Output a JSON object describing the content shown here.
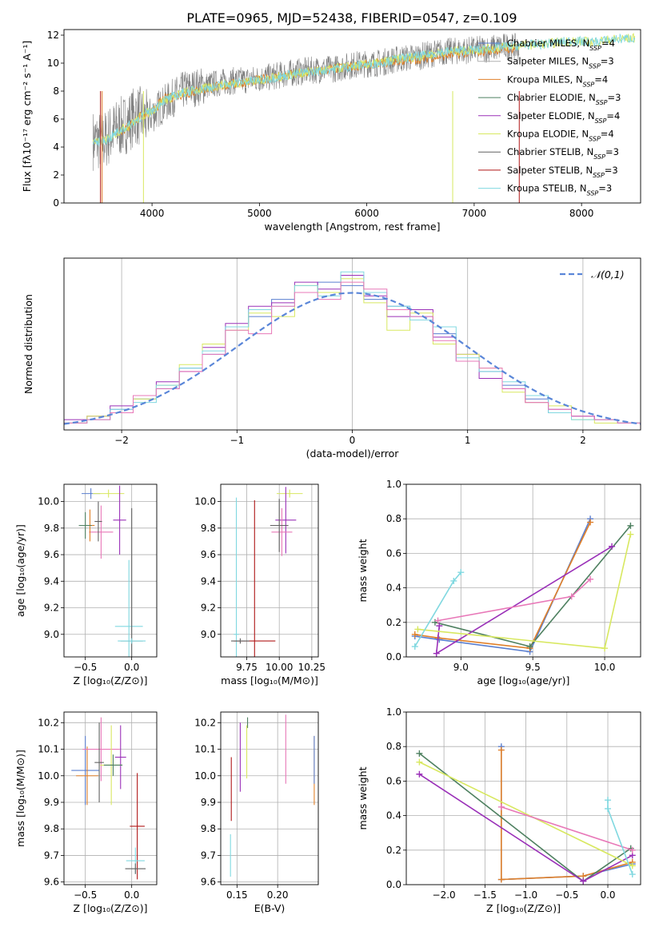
{
  "figure": {
    "title": "PLATE=0965, MJD=52438, FIBERID=0547, z=0.109"
  },
  "colors": {
    "Chabrier MILES": "#5a7fd0",
    "Salpeter MILES": "#b0b0b0",
    "Kroupa MILES": "#e0802a",
    "Chabrier ELODIE": "#4e8060",
    "Salpeter ELODIE": "#9a30b8",
    "Kroupa ELODIE": "#d8e860",
    "Chabrier STELIB": "#606060",
    "Salpeter STELIB": "#b01818",
    "Kroupa STELIB": "#80d8e0",
    "pink": "#e878b8",
    "data": "#808080",
    "normal": "#5a86d8"
  },
  "chart_data": [
    {
      "id": "spectrum",
      "type": "line",
      "xlabel": "wavelength [Angstrom, rest frame]",
      "ylabel": "Flux [fλ10⁻¹⁷ erg cm⁻² s⁻¹ A⁻¹]",
      "xlim": [
        3180,
        8550
      ],
      "ylim": [
        0,
        12.4
      ],
      "xticks": [
        4000,
        5000,
        6000,
        7000,
        8000
      ],
      "yticks": [
        0,
        2,
        4,
        6,
        8,
        10,
        12
      ],
      "grid": false,
      "legend_position": "right",
      "legend": [
        "Chabrier MILES, N_SSP=4",
        "Salpeter MILES, N_SSP=3",
        "Kroupa MILES, N_SSP=4",
        "Chabrier ELODIE, N_SSP=3",
        "Salpeter ELODIE, N_SSP=4",
        "Kroupa ELODIE, N_SSP=4",
        "Chabrier STELIB, N_SSP=3",
        "Salpeter STELIB, N_SSP=3",
        "Kroupa STELIB, N_SSP=3"
      ],
      "series": [
        {
          "name": "data",
          "x": [
            3450,
            3550,
            3650,
            3750,
            3850,
            3950,
            4100,
            4300,
            4500,
            4700,
            4900,
            5100,
            5300,
            5500,
            5700,
            5900,
            6100,
            6300,
            6500,
            6700,
            6900,
            7100,
            7300,
            7420
          ],
          "y": [
            4.5,
            4.4,
            5.2,
            5.6,
            6.3,
            6.0,
            7.0,
            8.1,
            8.4,
            8.7,
            8.8,
            9.0,
            9.3,
            9.5,
            9.6,
            9.9,
            10.0,
            10.3,
            10.5,
            10.8,
            10.9,
            11.0,
            11.2,
            11.1
          ]
        },
        {
          "name": "Kroupa MILES",
          "x": [
            3700,
            3800,
            3900,
            4000,
            4100,
            4300,
            4600,
            5000,
            5500,
            6000,
            6500,
            7000,
            7400
          ],
          "y": [
            5.1,
            5.6,
            6.2,
            6.5,
            7.4,
            7.8,
            8.3,
            8.8,
            9.4,
            9.9,
            10.3,
            10.8,
            11.1
          ]
        },
        {
          "name": "Kroupa STELIB",
          "x": [
            3450,
            3500,
            3600,
            3700,
            3800,
            3900,
            4000,
            4100,
            4200,
            4300,
            4500,
            4700,
            4900,
            5100,
            5300,
            5500,
            5700,
            5900,
            6100,
            6300,
            6500,
            6700,
            6900,
            7100,
            7300,
            7500,
            7700,
            7900,
            8100,
            8300,
            8500
          ],
          "y": [
            4.5,
            4.3,
            4.6,
            5.2,
            5.6,
            6.2,
            6.6,
            7.3,
            7.6,
            7.9,
            8.2,
            8.5,
            8.7,
            8.9,
            9.2,
            9.4,
            9.6,
            9.8,
            10.0,
            10.3,
            10.5,
            10.8,
            10.9,
            11.0,
            11.2,
            11.3,
            11.4,
            11.6,
            11.5,
            11.7,
            11.8
          ]
        }
      ]
    },
    {
      "id": "residuals",
      "type": "line",
      "xlabel": "(data-model)/error",
      "ylabel": "Normed distribution",
      "xlim": [
        -2.5,
        2.5
      ],
      "ylim": [
        0,
        0.5
      ],
      "xticks": [
        -2,
        -1,
        0,
        1,
        2
      ],
      "ytick_labels": [
        "0.0",
        "0.1",
        "0.2",
        "0.3",
        "0.4",
        "0.5"
      ],
      "grid": true,
      "legend": [
        "𝒩(0,1)"
      ],
      "legend_position": "top-right",
      "normal": {
        "mean": 0,
        "sigma": 1
      },
      "bin_edges": [
        -2.5,
        -2.3,
        -2.1,
        -1.9,
        -1.7,
        -1.5,
        -1.3,
        -1.1,
        -0.9,
        -0.7,
        -0.5,
        -0.3,
        -0.1,
        0.1,
        0.3,
        0.5,
        0.7,
        0.9,
        1.1,
        1.3,
        1.5,
        1.7,
        1.9,
        2.1,
        2.3,
        2.5
      ],
      "histograms": [
        {
          "name": "Chabrier MILES",
          "values": [
            0.02,
            0.03,
            0.06,
            0.09,
            0.12,
            0.18,
            0.22,
            0.3,
            0.33,
            0.38,
            0.4,
            0.43,
            0.42,
            0.38,
            0.36,
            0.33,
            0.28,
            0.2,
            0.17,
            0.13,
            0.09,
            0.05,
            0.04,
            0.03,
            0.02
          ]
        },
        {
          "name": "Salpeter ELODIE",
          "values": [
            0.03,
            0.04,
            0.07,
            0.1,
            0.14,
            0.17,
            0.24,
            0.31,
            0.36,
            0.37,
            0.43,
            0.41,
            0.45,
            0.39,
            0.33,
            0.35,
            0.27,
            0.22,
            0.15,
            0.12,
            0.08,
            0.06,
            0.04,
            0.03,
            0.02
          ]
        },
        {
          "name": "Kroupa ELODIE",
          "values": [
            0.02,
            0.04,
            0.05,
            0.09,
            0.13,
            0.19,
            0.25,
            0.29,
            0.34,
            0.33,
            0.42,
            0.4,
            0.44,
            0.37,
            0.29,
            0.34,
            0.25,
            0.22,
            0.18,
            0.11,
            0.08,
            0.07,
            0.03,
            0.02,
            0.02
          ]
        },
        {
          "name": "Kroupa STELIB",
          "values": [
            0.02,
            0.03,
            0.06,
            0.08,
            0.13,
            0.18,
            0.23,
            0.3,
            0.35,
            0.36,
            0.42,
            0.39,
            0.46,
            0.4,
            0.36,
            0.32,
            0.3,
            0.21,
            0.17,
            0.14,
            0.1,
            0.05,
            0.03,
            0.03,
            0.02
          ]
        },
        {
          "name": "pink",
          "values": [
            0.02,
            0.03,
            0.05,
            0.1,
            0.12,
            0.17,
            0.22,
            0.29,
            0.28,
            0.36,
            0.4,
            0.38,
            0.43,
            0.41,
            0.35,
            0.33,
            0.26,
            0.2,
            0.18,
            0.12,
            0.08,
            0.06,
            0.04,
            0.03,
            0.02
          ]
        }
      ]
    },
    {
      "id": "age_vs_Z",
      "type": "scatter",
      "xlabel": "Z [log₁₀(Z/Z⊙)]",
      "ylabel": "age  [log₁₀(age/yr)]",
      "xlim": [
        -0.73,
        0.27
      ],
      "ylim": [
        8.83,
        10.13
      ],
      "xtick_labels": [
        "−0.5",
        "0.0"
      ],
      "xticks": [
        -0.5,
        0.0
      ],
      "ytick_labels": [
        "9.0",
        "9.2",
        "9.4",
        "9.6",
        "9.8",
        "10.0"
      ],
      "yticks": [
        9.0,
        9.2,
        9.4,
        9.6,
        9.8,
        10.0
      ],
      "grid": true,
      "points": [
        {
          "series": "Chabrier MILES",
          "x": -0.44,
          "y": 10.06,
          "xerr": 0.1,
          "yerr": 0.04
        },
        {
          "series": "Kroupa ELODIE",
          "x": -0.25,
          "y": 10.06,
          "xerr": 0.17,
          "yerr": 0.03
        },
        {
          "series": "Salpeter ELODIE",
          "x": -0.13,
          "y": 9.86,
          "xerr": 0.07,
          "yerr": 0.26
        },
        {
          "series": "pink",
          "x": -0.33,
          "y": 9.77,
          "xerr": 0.13,
          "yerr": 0.2
        },
        {
          "series": "Chabrier STELIB",
          "x": -0.36,
          "y": 9.85,
          "xerr": 0.04,
          "yerr": 0.15
        },
        {
          "series": "Kroupa MILES",
          "x": -0.45,
          "y": 9.82,
          "xerr": 0.05,
          "yerr": 0.12
        },
        {
          "series": "Chabrier ELODIE",
          "x": -0.5,
          "y": 9.82,
          "xerr": 0.07,
          "yerr": 0.1
        },
        {
          "series": "Kroupa STELIB",
          "x": -0.03,
          "y": 9.06,
          "xerr": 0.15,
          "yerr": 0.5
        },
        {
          "series": "Chabrier STELIB",
          "x": 0.0,
          "y": 8.95,
          "xerr": 0.12,
          "yerr": 1.0
        },
        {
          "series": "Kroupa STELIB",
          "x": 0.0,
          "y": 8.95,
          "xerr": 0.15,
          "yerr": 0.02
        }
      ]
    },
    {
      "id": "age_vs_mass",
      "type": "scatter",
      "xlabel": "mass [log₁₀(M/M⊙)]",
      "xlim": [
        9.55,
        10.3
      ],
      "xtick_labels": [
        "9.75",
        "10.00",
        "10.25"
      ],
      "xticks": [
        9.75,
        10.0,
        10.25
      ],
      "ylim": [
        8.83,
        10.13
      ],
      "ytick_labels": [
        "9.0",
        "9.2",
        "9.4",
        "9.6",
        "9.8",
        "10.0"
      ],
      "yticks": [
        9.0,
        9.2,
        9.4,
        9.6,
        9.8,
        10.0
      ],
      "grid": true,
      "points": [
        {
          "series": "Kroupa ELODIE",
          "x": 10.08,
          "y": 10.06,
          "xerr": 0.1,
          "yerr": 0.03
        },
        {
          "series": "Salpeter ELODIE",
          "x": 10.05,
          "y": 9.86,
          "xerr": 0.08,
          "yerr": 0.25
        },
        {
          "series": "pink",
          "x": 10.02,
          "y": 9.77,
          "xerr": 0.08,
          "yerr": 0.18
        },
        {
          "series": "Chabrier STELIB",
          "x": 10.0,
          "y": 9.82,
          "xerr": 0.07,
          "yerr": 0.2
        },
        {
          "series": "Kroupa STELIB",
          "x": 9.67,
          "y": 9.0,
          "xerr": 0.02,
          "yerr": 1.03
        },
        {
          "series": "Salpeter STELIB",
          "x": 9.81,
          "y": 8.95,
          "xerr": 0.16,
          "yerr": 1.06
        },
        {
          "series": "Chabrier STELIB",
          "x": 9.7,
          "y": 8.95,
          "xerr": 0.07,
          "yerr": 0.02
        }
      ]
    },
    {
      "id": "weight_vs_age",
      "type": "line",
      "xlabel": "age  [log₁₀(age/yr)]",
      "ylabel": "mass weight",
      "xlim": [
        8.62,
        10.25
      ],
      "xticks": [
        9.0,
        9.5,
        10.0
      ],
      "xtick_labels": [
        "9.0",
        "9.5",
        "10.0"
      ],
      "ylim": [
        0,
        1.0
      ],
      "yticks": [
        0,
        0.2,
        0.4,
        0.6,
        0.8,
        1.0
      ],
      "ytick_labels": [
        "0.0",
        "0.2",
        "0.4",
        "0.6",
        "0.8",
        "1.0"
      ],
      "grid": true,
      "series": [
        {
          "name": "Chabrier MILES",
          "x": [
            8.68,
            8.85,
            9.48,
            9.9
          ],
          "y": [
            0.12,
            0.1,
            0.03,
            0.8
          ]
        },
        {
          "name": "Kroupa MILES",
          "x": [
            8.68,
            8.84,
            9.48,
            9.9
          ],
          "y": [
            0.13,
            0.11,
            0.05,
            0.78
          ]
        },
        {
          "name": "Chabrier ELODIE",
          "x": [
            8.82,
            9.48,
            10.18
          ],
          "y": [
            0.2,
            0.06,
            0.76
          ]
        },
        {
          "name": "Salpeter ELODIE",
          "x": [
            8.85,
            8.83,
            10.05
          ],
          "y": [
            0.18,
            0.02,
            0.64
          ]
        },
        {
          "name": "Kroupa ELODIE",
          "x": [
            8.7,
            10.0,
            10.18
          ],
          "y": [
            0.16,
            0.05,
            0.71
          ]
        },
        {
          "name": "pink",
          "x": [
            8.84,
            9.77,
            9.9
          ],
          "y": [
            0.21,
            0.35,
            0.45
          ]
        },
        {
          "name": "Kroupa STELIB",
          "x": [
            8.68,
            8.95,
            9.0
          ],
          "y": [
            0.06,
            0.44,
            0.49
          ]
        }
      ]
    },
    {
      "id": "mass_vs_Z",
      "type": "scatter",
      "xlabel": "Z [log₁₀(Z/Z⊙)]",
      "ylabel": "mass [log₁₀(M/M⊙)]",
      "xlim": [
        -0.73,
        0.27
      ],
      "xtick_labels": [
        "−0.5",
        "0.0"
      ],
      "xticks": [
        -0.5,
        0.0
      ],
      "ylim": [
        9.59,
        10.24
      ],
      "ytick_labels": [
        "9.6",
        "9.7",
        "9.8",
        "9.9",
        "10.0",
        "10.1",
        "10.2"
      ],
      "yticks": [
        9.6,
        9.7,
        9.8,
        9.9,
        10.0,
        10.1,
        10.2
      ],
      "grid": true,
      "points": [
        {
          "series": "Chabrier MILES",
          "x": -0.5,
          "y": 10.02,
          "xerr": 0.15,
          "yerr": 0.13
        },
        {
          "series": "Kroupa MILES",
          "x": -0.48,
          "y": 10.0,
          "xerr": 0.12,
          "yerr": 0.11
        },
        {
          "series": "pink",
          "x": -0.33,
          "y": 10.1,
          "xerr": 0.2,
          "yerr": 0.12
        },
        {
          "series": "Chabrier STELIB",
          "x": -0.35,
          "y": 10.05,
          "xerr": 0.05,
          "yerr": 0.15
        },
        {
          "series": "Kroupa ELODIE",
          "x": -0.22,
          "y": 10.04,
          "xerr": 0.12,
          "yerr": 0.15
        },
        {
          "series": "Salpeter ELODIE",
          "x": -0.12,
          "y": 10.07,
          "xerr": 0.06,
          "yerr": 0.12
        },
        {
          "series": "Chabrier ELODIE",
          "x": -0.2,
          "y": 10.04,
          "xerr": 0.1,
          "yerr": 0.04
        },
        {
          "series": "Salpeter STELIB",
          "x": 0.06,
          "y": 9.81,
          "xerr": 0.08,
          "yerr": 0.2
        },
        {
          "series": "Kroupa STELIB",
          "x": 0.04,
          "y": 9.68,
          "xerr": 0.1,
          "yerr": 0.05
        },
        {
          "series": "Chabrier STELIB",
          "x": 0.04,
          "y": 9.65,
          "xerr": 0.11,
          "yerr": 0.02
        }
      ]
    },
    {
      "id": "mass_vs_EBV",
      "type": "scatter",
      "xlabel": "E(B-V)",
      "xlim": [
        0.13,
        0.25
      ],
      "xticks": [
        0.15,
        0.2
      ],
      "xtick_labels": [
        "0.15",
        "0.20"
      ],
      "ylim": [
        9.59,
        10.24
      ],
      "ytick_labels": [
        "9.6",
        "9.7",
        "9.8",
        "9.9",
        "10.0",
        "10.1",
        "10.2"
      ],
      "yticks": [
        9.6,
        9.7,
        9.8,
        9.9,
        10.0,
        10.1,
        10.2
      ],
      "grid": true,
      "points": [
        {
          "series": "Kroupa STELIB",
          "x": 0.142,
          "y": 9.7,
          "yerr": 0.08
        },
        {
          "series": "Salpeter STELIB",
          "x": 0.143,
          "y": 9.95,
          "yerr": 0.12
        },
        {
          "series": "Salpeter ELODIE",
          "x": 0.154,
          "y": 10.07,
          "yerr": 0.13
        },
        {
          "series": "Chabrier ELODIE",
          "x": 0.163,
          "y": 10.2,
          "yerr": 0.02
        },
        {
          "series": "Kroupa ELODIE",
          "x": 0.162,
          "y": 10.09,
          "yerr": 0.1
        },
        {
          "series": "pink",
          "x": 0.21,
          "y": 10.1,
          "yerr": 0.13
        },
        {
          "series": "Kroupa MILES",
          "x": 0.245,
          "y": 10.02,
          "yerr": 0.13
        },
        {
          "series": "Chabrier MILES",
          "x": 0.245,
          "y": 10.06,
          "yerr": 0.09
        }
      ]
    },
    {
      "id": "weight_vs_Z",
      "type": "line",
      "xlabel": "Z [log₁₀(Z/Z⊙)]",
      "ylabel": "mass weight",
      "xlim": [
        -2.46,
        0.4
      ],
      "xticks": [
        -2.0,
        -1.5,
        -1.0,
        -0.5,
        0.0
      ],
      "xtick_labels": [
        "−2.0",
        "−1.5",
        "−1.0",
        "−0.5",
        "0.0"
      ],
      "ylim": [
        0,
        1.0
      ],
      "yticks": [
        0,
        0.2,
        0.4,
        0.6,
        0.8,
        1.0
      ],
      "ytick_labels": [
        "0.0",
        "0.2",
        "0.4",
        "0.6",
        "0.8",
        "1.0"
      ],
      "grid": true,
      "series": [
        {
          "name": "Chabrier MILES",
          "x": [
            -1.3,
            -1.3,
            -0.3,
            0.3
          ],
          "y": [
            0.8,
            0.03,
            0.05,
            0.12
          ]
        },
        {
          "name": "Kroupa MILES",
          "x": [
            -1.3,
            -1.3,
            -0.3,
            0.3
          ],
          "y": [
            0.78,
            0.03,
            0.05,
            0.13
          ]
        },
        {
          "name": "Chabrier ELODIE",
          "x": [
            -2.3,
            -0.3,
            0.28
          ],
          "y": [
            0.76,
            0.02,
            0.21
          ]
        },
        {
          "name": "Salpeter ELODIE",
          "x": [
            -2.3,
            -0.3,
            0.3
          ],
          "y": [
            0.64,
            0.02,
            0.17
          ]
        },
        {
          "name": "Kroupa ELODIE",
          "x": [
            -2.3,
            0.3
          ],
          "y": [
            0.71,
            0.11
          ]
        },
        {
          "name": "pink",
          "x": [
            -1.3,
            0.3
          ],
          "y": [
            0.45,
            0.2
          ]
        },
        {
          "name": "Kroupa STELIB",
          "x": [
            0.0,
            0.0,
            0.3
          ],
          "y": [
            0.49,
            0.44,
            0.06
          ]
        }
      ]
    }
  ]
}
